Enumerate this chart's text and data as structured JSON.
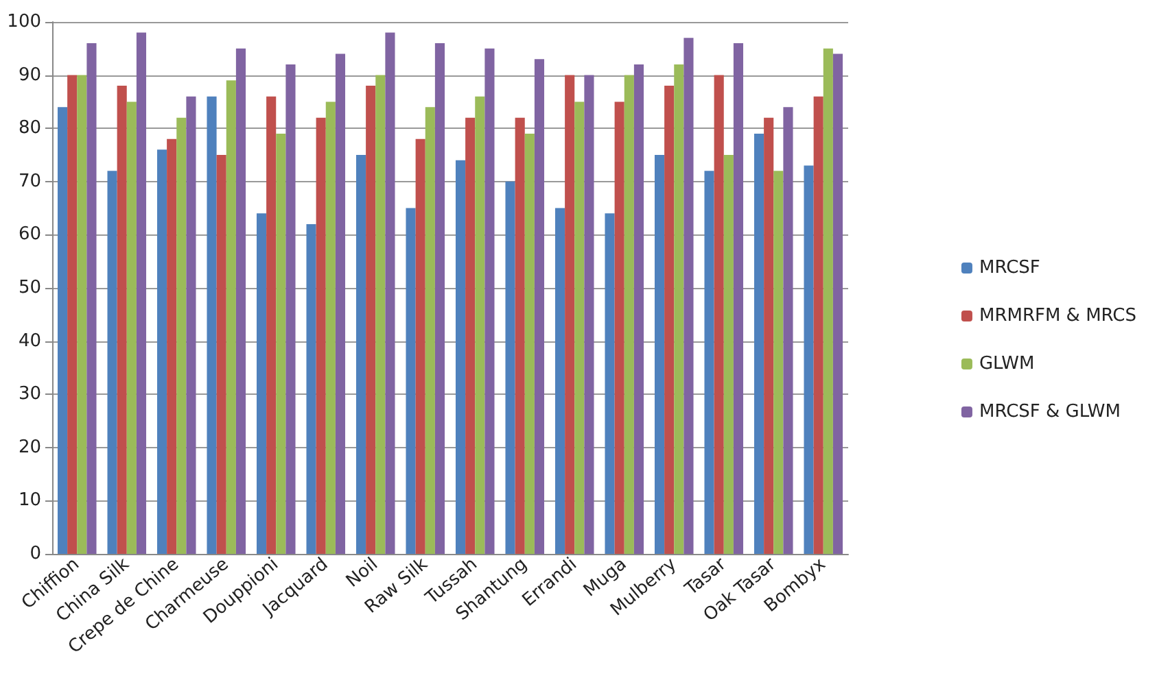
{
  "chart_data": {
    "type": "bar",
    "categories": [
      "Chiffion",
      "China Silk",
      "Crepe de Chine",
      "Charmeuse",
      "Douppioni",
      "Jacquard",
      "Noil",
      "Raw Silk",
      "Tussah",
      "Shantung",
      "Errandi",
      "Muga",
      "Mulberry",
      "Tasar",
      "Oak Tasar",
      "Bombyx"
    ],
    "series": [
      {
        "name": "MRCSF",
        "color": "#4f81bd",
        "values": [
          84,
          72,
          76,
          86,
          64,
          62,
          75,
          65,
          74,
          70,
          65,
          64,
          75,
          72,
          79,
          73
        ]
      },
      {
        "name": "MRMRFM & MRCS",
        "color": "#c0504d",
        "values": [
          90,
          88,
          78,
          75,
          86,
          82,
          88,
          78,
          82,
          82,
          90,
          85,
          88,
          90,
          82,
          86
        ]
      },
      {
        "name": "GLWM",
        "color": "#9bbb59",
        "values": [
          90,
          85,
          82,
          89,
          79,
          85,
          90,
          84,
          86,
          79,
          85,
          90,
          92,
          75,
          72,
          95
        ]
      },
      {
        "name": "MRCSF & GLWM",
        "color": "#8064a2",
        "values": [
          96,
          98,
          86,
          95,
          92,
          94,
          98,
          96,
          95,
          93,
          90,
          92,
          97,
          96,
          84,
          94
        ]
      }
    ],
    "ylim": [
      0,
      100
    ],
    "yticks": [
      0,
      10,
      20,
      30,
      40,
      50,
      60,
      70,
      80,
      90,
      100
    ],
    "grid": "y",
    "legend": "right"
  }
}
